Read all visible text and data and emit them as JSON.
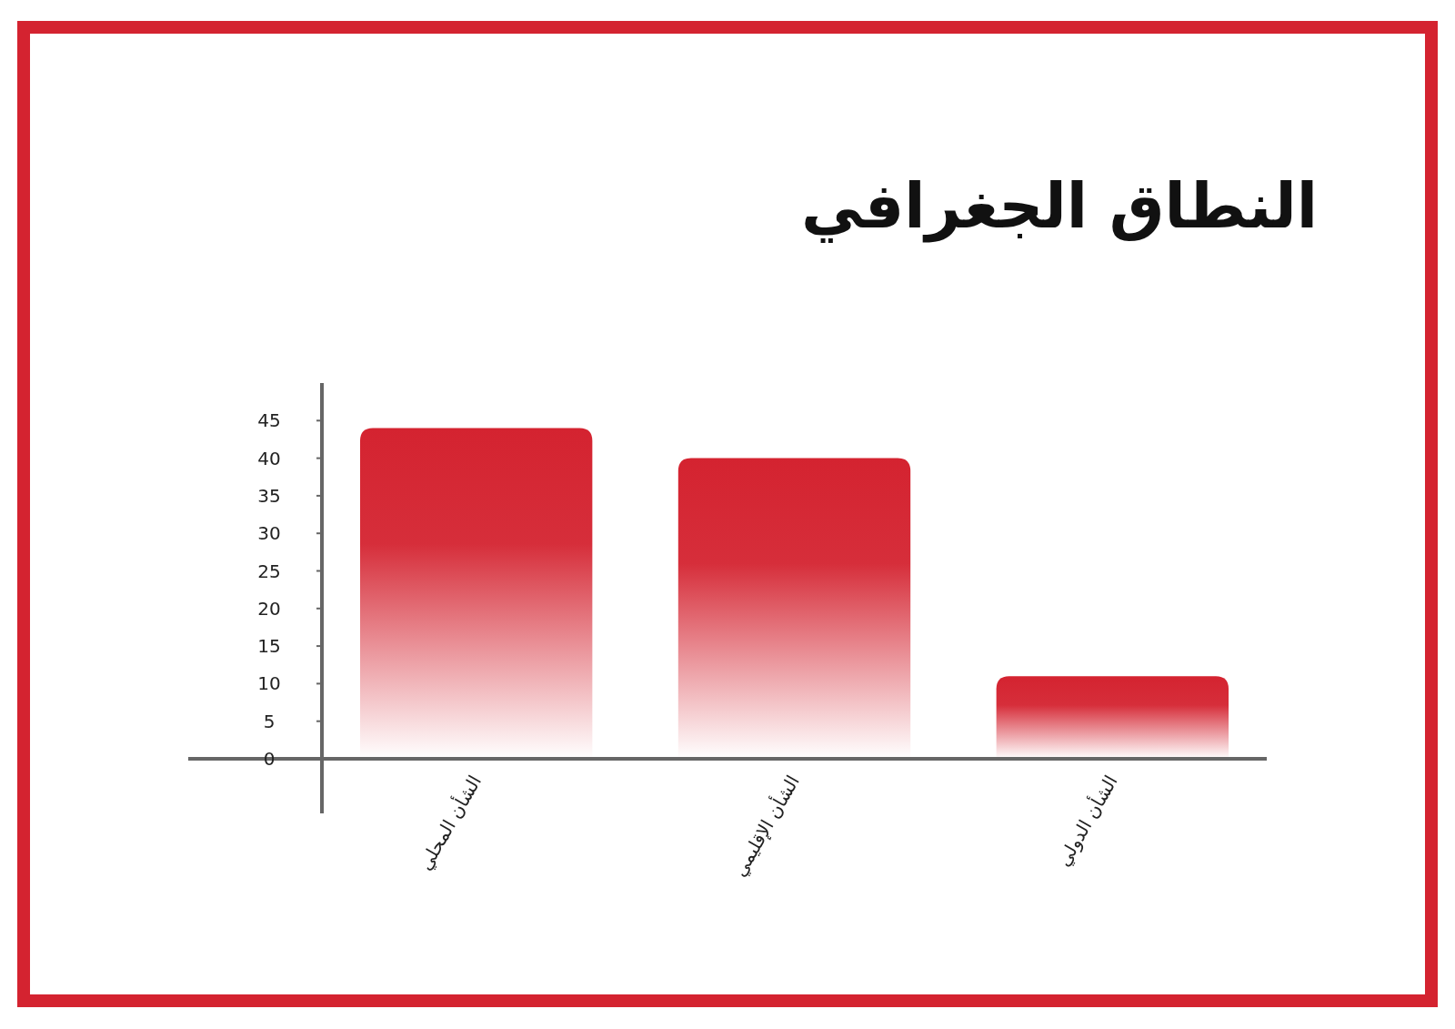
{
  "chart_data": {
    "type": "bar",
    "title": "النطاق الجغرافي",
    "categories": [
      "الشأن المحلي",
      "الشأن الإقليمي",
      "الشأن الدولي"
    ],
    "values": [
      44,
      40,
      11
    ],
    "color": "#d42330",
    "ylim": [
      0,
      50
    ],
    "yticks": [
      0,
      5,
      10,
      15,
      20,
      25,
      30,
      35,
      40,
      45
    ]
  }
}
